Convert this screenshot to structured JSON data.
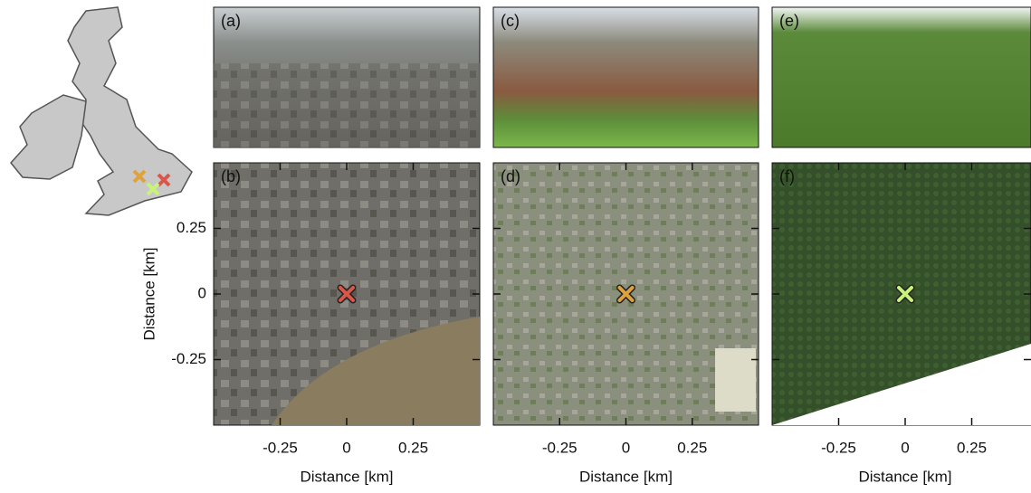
{
  "panels": [
    {
      "label": "(a)"
    },
    {
      "label": "(b)"
    },
    {
      "label": "(c)"
    },
    {
      "label": "(d)"
    },
    {
      "label": "(e)"
    },
    {
      "label": "(f)"
    }
  ],
  "axes": {
    "x_label": "Distance [km]",
    "y_label": "Distance [km]",
    "xlim": [
      -0.5,
      0.5
    ],
    "ylim": [
      -0.5,
      0.5
    ],
    "xticks": [
      -0.25,
      0,
      0.25
    ],
    "yticks": [
      -0.25,
      0,
      0.25
    ]
  }
}
